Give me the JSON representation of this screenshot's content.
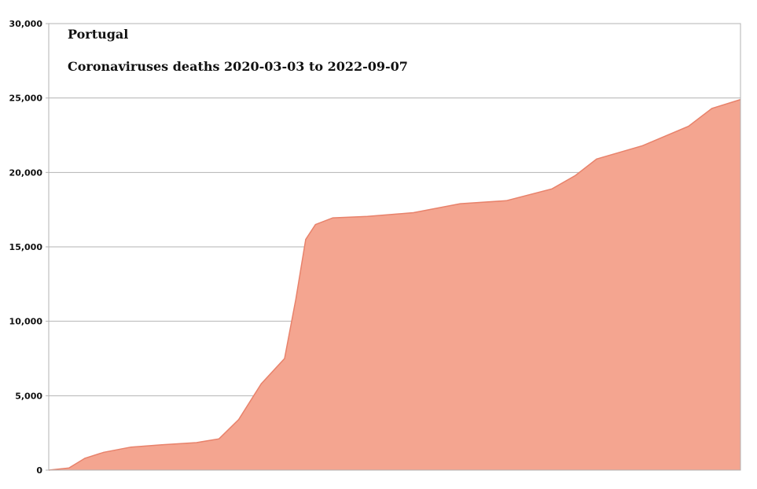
{
  "chart_data": {
    "type": "area",
    "title": "Portugal",
    "subtitle": "Coronaviruses deaths 2020-03-03 to 2022-09-07",
    "xlabel": "",
    "ylabel": "",
    "x_range": [
      "2020-03-03",
      "2022-09-07"
    ],
    "ylim": [
      0,
      30000
    ],
    "yticks": [
      0,
      5000,
      10000,
      15000,
      20000,
      25000,
      30000
    ],
    "ytick_labels": [
      "0",
      "5,000",
      "10,000",
      "15,000",
      "20,000",
      "25,000",
      "30,000"
    ],
    "grid": true,
    "fill_color": "#f4a590",
    "line_color": "#e8826b",
    "series": [
      {
        "x": [
          "2020-03-03",
          "2020-03-30",
          "2020-04-20",
          "2020-05-15",
          "2020-06-20",
          "2020-07-31",
          "2020-09-15",
          "2020-10-15",
          "2020-11-10",
          "2020-12-10",
          "2021-01-10",
          "2021-01-25",
          "2021-02-07",
          "2021-02-20",
          "2021-03-15",
          "2021-04-30",
          "2021-06-30",
          "2021-08-31",
          "2021-10-31",
          "2021-12-31",
          "2022-01-31",
          "2022-02-28",
          "2022-04-30",
          "2022-06-30",
          "2022-07-31",
          "2022-09-07"
        ],
        "values": [
          0,
          150,
          800,
          1200,
          1550,
          1700,
          1850,
          2100,
          3400,
          5800,
          7500,
          11500,
          15500,
          16500,
          16950,
          17050,
          17300,
          17900,
          18100,
          18900,
          19800,
          20900,
          21800,
          23100,
          24300,
          24900
        ]
      }
    ]
  }
}
